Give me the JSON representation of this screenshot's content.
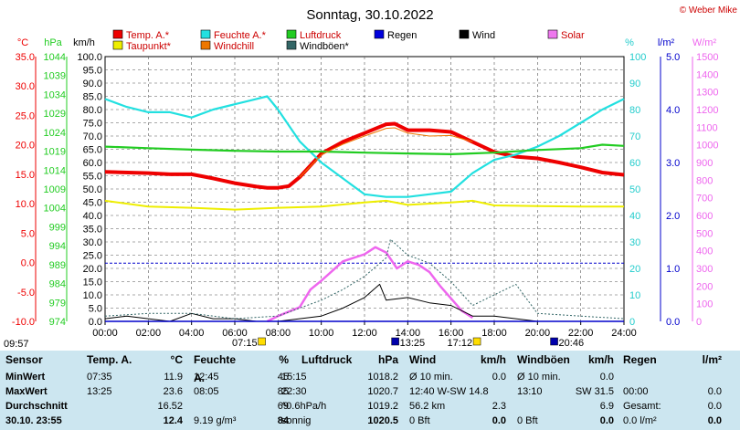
{
  "title": "Sonntag, 30.10.2022",
  "copyright": "© Weber Mike",
  "legend": [
    {
      "label": "Temp. A.*",
      "color": "#ee0000"
    },
    {
      "label": "Feuchte A.*",
      "color": "#22e0e0"
    },
    {
      "label": "Luftdruck",
      "color": "#22cc22"
    },
    {
      "label": "Regen",
      "color": "#0000dd"
    },
    {
      "label": "Wind",
      "color": "#000000"
    },
    {
      "label": "Solar",
      "color": "#ee77ee"
    },
    {
      "label": "Taupunkt*",
      "color": "#eeee00"
    },
    {
      "label": "Windchill",
      "color": "#ee7700"
    },
    {
      "label": "Windböen*",
      "color": "#336666"
    }
  ],
  "unit_headers": {
    "temp": "°C",
    "hpa": "hPa",
    "kmh": "km/h",
    "pct": "%",
    "lm2": "l/m²",
    "wm2": "W/m²"
  },
  "colors": {
    "temp": "#ee0000",
    "hpa": "#22cc22",
    "kmh": "#000000",
    "pct": "#22cccc",
    "lm2": "#0000cc",
    "wm2": "#ee66ee",
    "dew": "#eeee00",
    "chill": "#ee7700",
    "gust": "#336666",
    "grid": "#555555"
  },
  "chart_data": {
    "type": "line",
    "x_ticks": [
      "00:00",
      "02:00",
      "04:00",
      "06:00",
      "08:00",
      "10:00",
      "12:00",
      "14:00",
      "16:00",
      "18:00",
      "20:00",
      "22:00",
      "24:00"
    ],
    "axes": {
      "temp": {
        "ticks": [
          "35.0",
          "30.0",
          "25.0",
          "20.0",
          "15.0",
          "10.0",
          "5.0",
          "0.0",
          "-5.0",
          "-10.0"
        ],
        "ylim": [
          -10,
          35
        ]
      },
      "hpa": {
        "ticks": [
          "1044",
          "1039",
          "1034",
          "1029",
          "1024",
          "1019",
          "1014",
          "1009",
          "1004",
          "999",
          "994",
          "989",
          "984",
          "979",
          "974"
        ],
        "ylim": [
          974,
          1044
        ]
      },
      "kmh": {
        "ticks": [
          "100.0",
          "95.0",
          "90.0",
          "85.0",
          "80.0",
          "75.0",
          "70.0",
          "65.0",
          "60.0",
          "55.0",
          "50.0",
          "45.0",
          "40.0",
          "35.0",
          "30.0",
          "25.0",
          "20.0",
          "15.0",
          "10.0",
          "5.0",
          "0.0"
        ],
        "ylim": [
          0,
          100
        ]
      },
      "pct": {
        "ticks": [
          "100",
          "90",
          "80",
          "70",
          "60",
          "50",
          "40",
          "30",
          "20",
          "10",
          "0"
        ],
        "ylim": [
          0,
          100
        ]
      },
      "lm2": {
        "ticks": [
          "5.0",
          "4.0",
          "3.0",
          "2.0",
          "1.0",
          "0.0"
        ],
        "ylim": [
          0,
          5
        ]
      },
      "wm2": {
        "ticks": [
          "1500",
          "1400",
          "1300",
          "1200",
          "1100",
          "1000",
          "900",
          "800",
          "700",
          "600",
          "500",
          "400",
          "300",
          "200",
          "100",
          "0"
        ],
        "ylim": [
          0,
          1500
        ]
      }
    },
    "series": [
      {
        "name": "Temp. A.*",
        "axis": "temp",
        "hours": [
          0,
          2,
          3,
          4,
          5,
          6,
          7,
          7.5,
          8,
          8.5,
          9,
          10,
          11,
          12,
          13,
          13.4,
          14,
          15,
          16,
          17,
          18,
          19,
          20,
          21,
          22,
          23,
          24
        ],
        "values": [
          15.4,
          15.2,
          15.0,
          15.0,
          14.3,
          13.5,
          12.9,
          12.7,
          12.7,
          13.0,
          14.5,
          18.5,
          20.5,
          22.0,
          23.5,
          23.6,
          22.5,
          22.5,
          22.2,
          20.5,
          18.8,
          18.0,
          17.7,
          17.0,
          16.2,
          15.3,
          14.9
        ]
      },
      {
        "name": "Feuchte A.*",
        "axis": "pct",
        "hours": [
          0,
          1,
          2,
          3,
          4,
          5,
          6,
          7,
          7.5,
          8,
          9,
          10,
          11,
          12,
          13,
          14,
          15,
          16,
          17,
          18,
          19,
          20,
          21,
          22,
          23,
          24
        ],
        "values": [
          84,
          81,
          79,
          79,
          77,
          80,
          82,
          84,
          85,
          80,
          68,
          60,
          54,
          48,
          47,
          47,
          48,
          49,
          56,
          61,
          63,
          66,
          70,
          75,
          80,
          84
        ]
      },
      {
        "name": "Luftdruck",
        "axis": "hpa",
        "hours": [
          0,
          2,
          4,
          6,
          8,
          10,
          12,
          14,
          16,
          18,
          20,
          22,
          23,
          24
        ],
        "values": [
          1020.2,
          1019.8,
          1019.4,
          1019.1,
          1018.9,
          1018.9,
          1018.6,
          1018.4,
          1018.2,
          1018.6,
          1019.3,
          1019.8,
          1020.7,
          1020.4
        ]
      },
      {
        "name": "Taupunkt*",
        "axis": "temp",
        "hours": [
          0,
          2,
          4,
          6,
          8,
          10,
          12,
          13,
          14,
          16,
          17,
          18,
          20,
          22,
          24
        ],
        "values": [
          10.5,
          9.5,
          9.3,
          9.0,
          9.3,
          9.5,
          10.2,
          10.5,
          9.8,
          10.2,
          10.5,
          9.7,
          9.6,
          9.5,
          9.5
        ]
      },
      {
        "name": "Windchill",
        "axis": "temp",
        "hours": [
          9,
          10,
          11,
          12,
          13,
          13.4,
          14,
          15,
          16,
          17
        ],
        "values": [
          14.5,
          18.3,
          20.1,
          21.5,
          22.8,
          22.9,
          22.0,
          21.5,
          21.6,
          20.5
        ]
      },
      {
        "name": "Solar",
        "axis": "wm2",
        "hours": [
          7.5,
          8,
          9,
          9.5,
          10,
          11,
          12,
          12.5,
          13,
          13.5,
          14,
          14.5,
          15,
          15.5,
          16,
          16.5,
          17
        ],
        "values": [
          0,
          30,
          80,
          180,
          230,
          340,
          380,
          420,
          390,
          300,
          340,
          320,
          280,
          200,
          130,
          60,
          20
        ]
      },
      {
        "name": "Wind",
        "axis": "kmh",
        "hours": [
          0,
          1,
          2,
          3,
          4,
          5,
          6,
          7,
          8,
          9,
          10,
          11,
          12,
          12.7,
          13,
          14,
          15,
          16,
          17,
          18,
          19,
          20,
          24
        ],
        "values": [
          1,
          2,
          1,
          0,
          3,
          1,
          1,
          0,
          0,
          1,
          2,
          5,
          9,
          14,
          8,
          9,
          7,
          6,
          2,
          2,
          1,
          0,
          0
        ]
      },
      {
        "name": "Windböen*",
        "axis": "kmh",
        "hours": [
          0,
          2,
          4,
          6,
          8,
          9,
          10,
          11,
          12,
          13,
          13.2,
          14,
          15,
          16,
          17,
          18,
          19,
          20,
          24
        ],
        "values": [
          2,
          3,
          3,
          1,
          2,
          5,
          8,
          12,
          17,
          24,
          31,
          25,
          22,
          15,
          6,
          10,
          14,
          3,
          1
        ]
      },
      {
        "name": "Regen",
        "axis": "lm2",
        "hours": [
          0,
          24
        ],
        "values": [
          0,
          0
        ]
      }
    ],
    "dashed_ref": {
      "axis": "pct",
      "value": 22
    },
    "events": [
      {
        "label": "07:15",
        "hour": 7.25,
        "kind": "sunrise"
      },
      {
        "label": "13:25",
        "hour": 13.42,
        "kind": "max"
      },
      {
        "label": "17:12",
        "hour": 17.2,
        "kind": "sunset"
      },
      {
        "label": "20:46",
        "hour": 20.77,
        "kind": "max"
      }
    ],
    "corner_time": "09:57"
  },
  "table": {
    "headers": [
      "Sensor",
      "Temp. A.",
      "°C",
      "Feuchte A.",
      "%",
      "Luftdruck",
      "hPa",
      "Wind",
      "km/h",
      "Windböen",
      "km/h",
      "Regen",
      "l/m²"
    ],
    "rows": [
      {
        "label": "MinWert",
        "cells": [
          "07:35",
          "11.9",
          "12:45",
          "45",
          "15:15",
          "1018.2",
          "Ø 10 min.",
          "0.0",
          "Ø 10 min.",
          "0.0",
          "",
          ""
        ]
      },
      {
        "label": "MaxWert",
        "cells": [
          "13:25",
          "23.6",
          "08:05",
          "85",
          "22:30",
          "1020.7",
          "12:40    W-SW 14.8",
          "",
          "13:10",
          "SW 31.5",
          "00:00",
          "0.0"
        ]
      },
      {
        "label": "Durchschnitt",
        "cells": [
          "",
          "16.52",
          "",
          "69",
          "^0.6hPa/h",
          "1019.2",
          "56.2 km",
          "2.3",
          "",
          "6.9",
          "Gesamt:",
          "0.0"
        ]
      },
      {
        "label": "30.10.  23:55",
        "cells": [
          "",
          "12.4",
          "9.19 g/m³",
          "84",
          "sonnig",
          "1020.5",
          "0 Bft",
          "0.0",
          "0 Bft",
          "0.0",
          "0.0 l/m²",
          "0.0"
        ]
      }
    ]
  }
}
